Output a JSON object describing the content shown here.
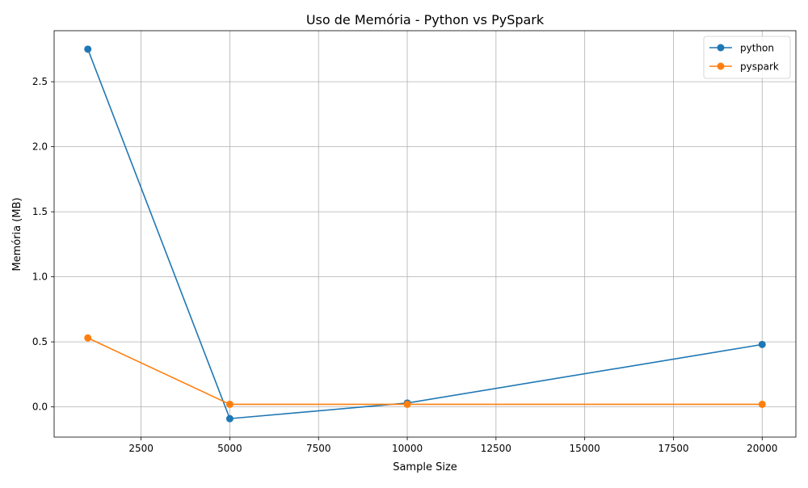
{
  "chart_data": {
    "type": "line",
    "title": "Uso de Memória - Python vs PySpark",
    "xlabel": "Sample Size",
    "ylabel": "Memória (MB)",
    "x": [
      1000,
      5000,
      10000,
      20000
    ],
    "series": [
      {
        "name": "python",
        "values": [
          2.75,
          -0.09,
          0.03,
          0.48
        ],
        "color": "#1f77b4"
      },
      {
        "name": "pyspark",
        "values": [
          0.53,
          0.02,
          0.02,
          0.02
        ],
        "color": "#ff7f0e"
      }
    ],
    "xlim": [
      50,
      20950
    ],
    "ylim": [
      -0.232,
      2.892
    ],
    "xticks": [
      2500,
      5000,
      7500,
      10000,
      12500,
      15000,
      17500,
      20000
    ],
    "yticks": [
      0.0,
      0.5,
      1.0,
      1.5,
      2.0,
      2.5
    ],
    "ytick_labels": [
      "0.0",
      "0.5",
      "1.0",
      "1.5",
      "2.0",
      "2.5"
    ],
    "grid": true,
    "legend": "top-right",
    "marker": "circle"
  }
}
